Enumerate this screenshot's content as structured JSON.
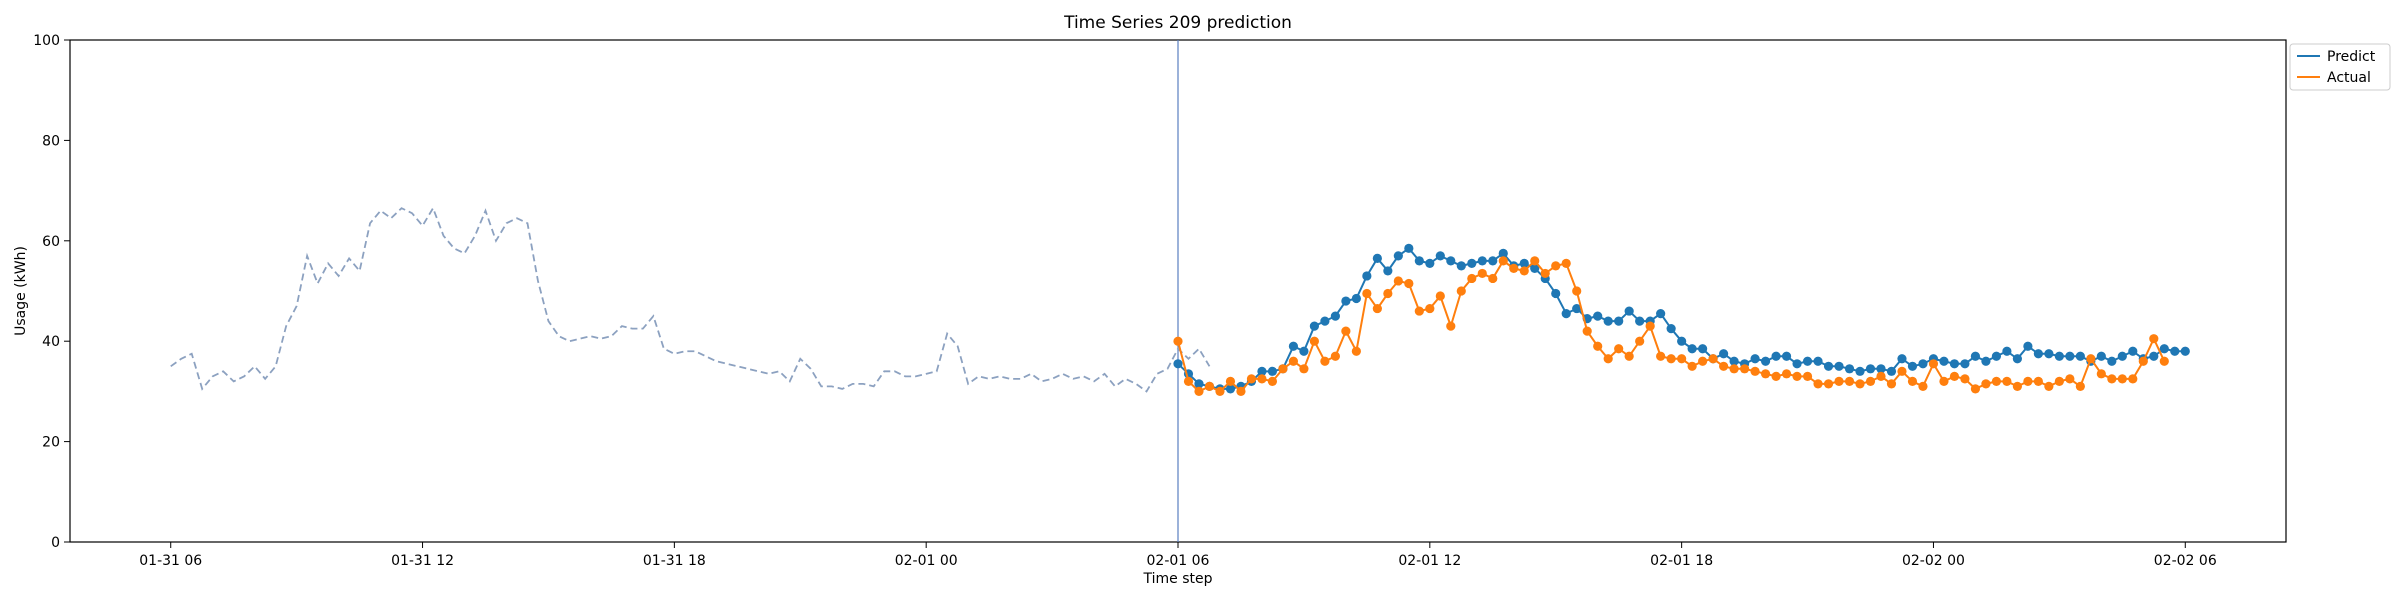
{
  "chart_data": {
    "type": "line",
    "title": "Time Series 209 prediction",
    "xlabel": "Time step",
    "ylabel": "Usage (kWh)",
    "ylim": [
      0,
      100
    ],
    "yticks": [
      0,
      20,
      40,
      60,
      80,
      100
    ],
    "xticks": [
      {
        "t": 0,
        "label": "01-31 06"
      },
      {
        "t": 6,
        "label": "01-31 12"
      },
      {
        "t": 12,
        "label": "01-31 18"
      },
      {
        "t": 18,
        "label": "02-01 00"
      },
      {
        "t": 24,
        "label": "02-01 06"
      },
      {
        "t": 30,
        "label": "02-01 12"
      },
      {
        "t": 36,
        "label": "02-01 18"
      },
      {
        "t": 42,
        "label": "02-02 00"
      },
      {
        "t": 48,
        "label": "02-02 06"
      }
    ],
    "xlim": [
      -2.4,
      50.4
    ],
    "forecast_start": 24.0,
    "grid": false,
    "legend_position": "top-right",
    "colors": {
      "history": "#8ca1c0",
      "predict": "#1f77b4",
      "actual": "#ff7f0e",
      "vline": "#5a7fc0"
    },
    "history": {
      "t_start": 0.0,
      "step": 0.25,
      "values": [
        35,
        36.5,
        37.5,
        30.5,
        33,
        34,
        32,
        33,
        35,
        32.5,
        35,
        43,
        47,
        57,
        51.5,
        55.5,
        53,
        56.5,
        54,
        63.5,
        66,
        64.5,
        66.5,
        65.5,
        63,
        66.5,
        61,
        58.5,
        57.5,
        61,
        66,
        60,
        63.5,
        64.5,
        63.5,
        52,
        44,
        41,
        40,
        40.5,
        41,
        40.5,
        41,
        43,
        42.5,
        42.5,
        45,
        38.5,
        37.5,
        38,
        38,
        37,
        36,
        35.5,
        35,
        34.5,
        34,
        33.5,
        34,
        32,
        36.5,
        34.5,
        31,
        31,
        30.5,
        31.5,
        31.5,
        31,
        34,
        34,
        33,
        33,
        33.5,
        34,
        41.5,
        39,
        31.5,
        33,
        32.5,
        33,
        32.5,
        32.5,
        33.5,
        32,
        32.5,
        33.5,
        32.5,
        33,
        32,
        33.5,
        31,
        32.5,
        31.5,
        30,
        33.5,
        34.5,
        38.5,
        36.5,
        38.5,
        35
      ]
    },
    "series": [
      {
        "name": "Predict",
        "t_start": 24.0,
        "step": 0.25,
        "values": [
          35.5,
          33.5,
          31.5,
          31,
          30.5,
          30.5,
          31,
          32,
          34,
          34,
          34.5,
          39,
          38,
          43,
          44,
          45,
          48,
          48.5,
          53,
          56.5,
          54,
          57,
          58.5,
          56,
          55.5,
          57,
          56,
          55,
          55.5,
          56,
          56,
          57.5,
          55,
          55.5,
          54.5,
          52.5,
          49.5,
          45.5,
          46.5,
          44.5,
          45,
          44,
          44,
          46,
          44,
          44,
          45.5,
          42.5,
          40,
          38.5,
          38.5,
          36.5,
          37.5,
          36,
          35.5,
          36.5,
          36,
          37,
          37,
          35.5,
          36,
          36,
          35,
          35,
          34.5,
          34,
          34.5,
          34.5,
          34,
          36.5,
          35,
          35.5,
          36.5,
          36,
          35.5,
          35.5,
          37,
          36,
          37,
          38,
          36.5,
          39,
          37.5,
          37.5,
          37,
          37,
          37,
          36,
          37,
          36,
          37,
          38,
          36.5,
          37,
          38.5,
          38,
          38
        ]
      },
      {
        "name": "Actual",
        "t_start": 24.0,
        "step": 0.25,
        "values": [
          40,
          32,
          30,
          31,
          30,
          32,
          30,
          32.5,
          32.5,
          32,
          34.5,
          36,
          34.5,
          40,
          36,
          37,
          42,
          38,
          49.5,
          46.5,
          49.5,
          52,
          51.5,
          46,
          46.5,
          49,
          43,
          50,
          52.5,
          53.5,
          52.5,
          56,
          54.5,
          54,
          56,
          53.5,
          55,
          55.5,
          50,
          42,
          39,
          36.5,
          38.5,
          37,
          40,
          43,
          37,
          36.5,
          36.5,
          35,
          36,
          36.5,
          35,
          34.5,
          34.5,
          34,
          33.5,
          33,
          33.5,
          33,
          33,
          31.5,
          31.5,
          32,
          32,
          31.5,
          32,
          33,
          31.5,
          34,
          32,
          31,
          35.5,
          32,
          33,
          32.5,
          30.5,
          31.5,
          32,
          32,
          31,
          32,
          32,
          31,
          32,
          32.5,
          31,
          36.5,
          33.5,
          32.5,
          32.5,
          32.5,
          36,
          40.5,
          36
        ]
      }
    ]
  }
}
